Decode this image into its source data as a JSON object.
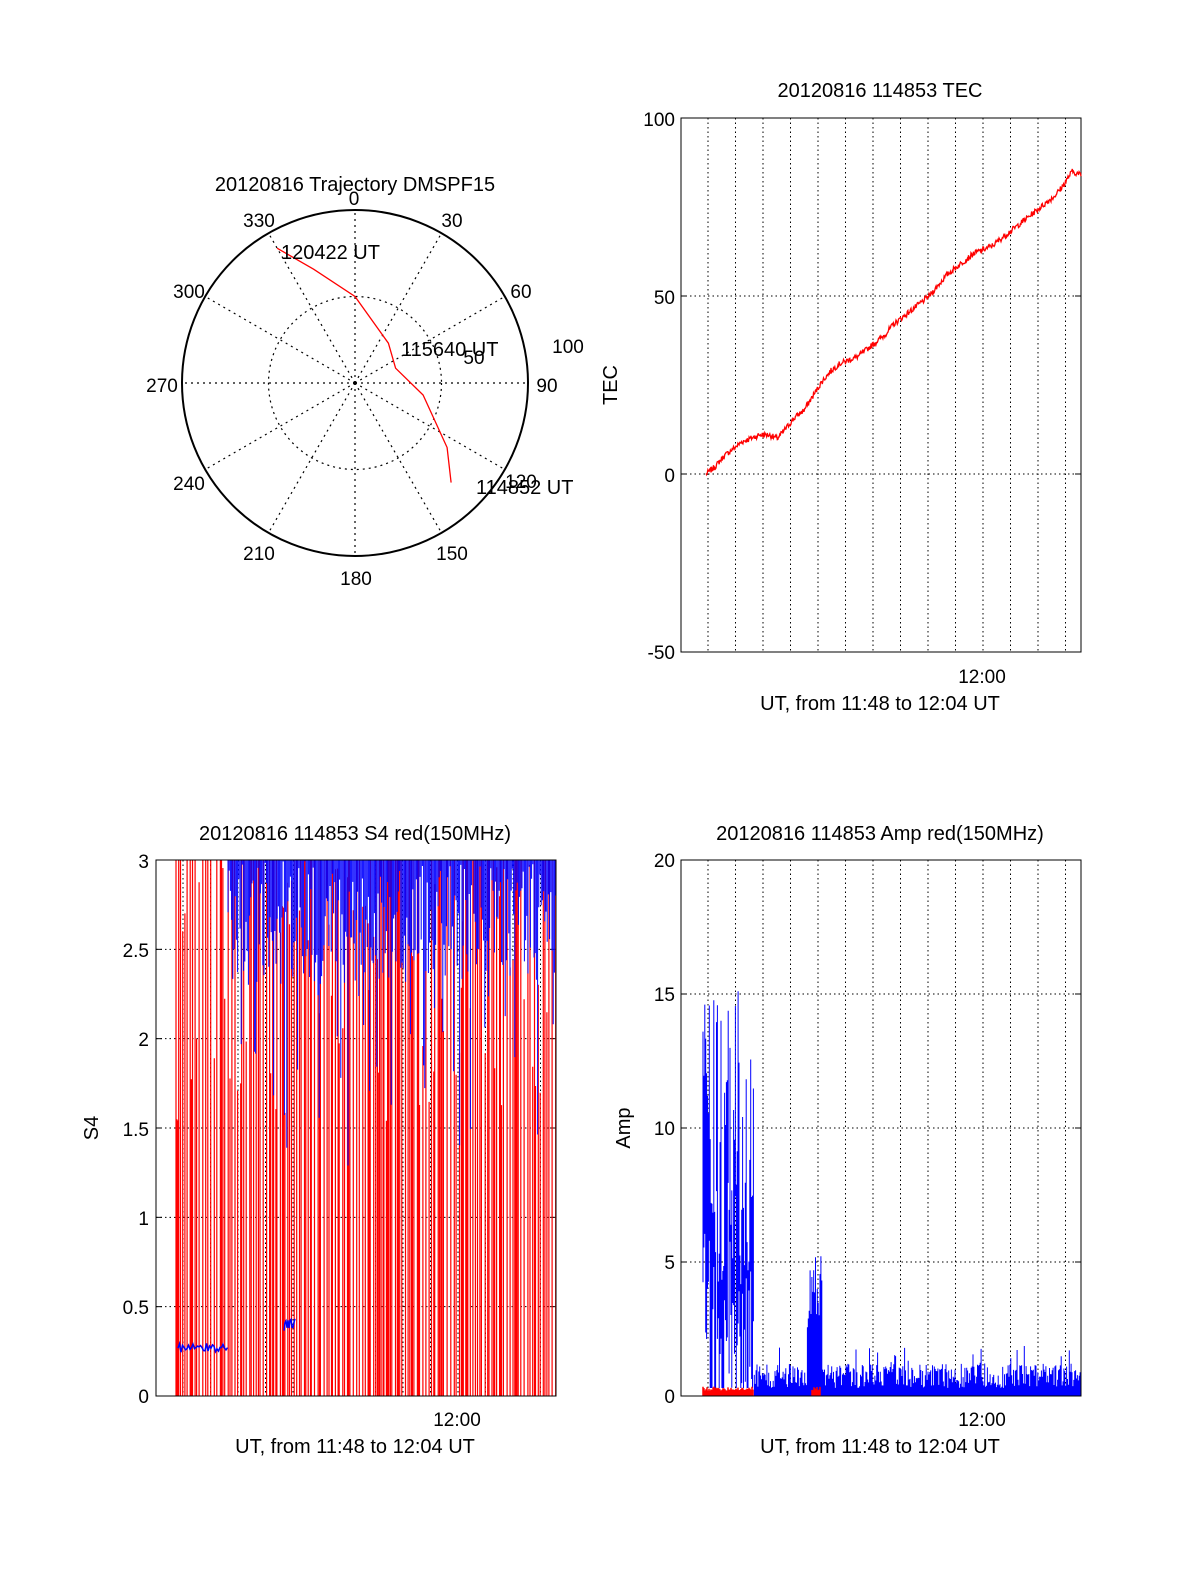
{
  "colors": {
    "red": "#ff0000",
    "blue": "#0000ff",
    "axis": "#000000",
    "grid": "#000000"
  },
  "chart_data": [
    {
      "type": "polar",
      "title": "20120816 Trajectory DMSPF15",
      "angle_labels": [
        "0",
        "30",
        "60",
        "90",
        "120",
        "150",
        "180",
        "210",
        "240",
        "270",
        "300",
        "330"
      ],
      "radial_labels": [
        "50",
        "100"
      ],
      "rlim": [
        0,
        100
      ],
      "grid": true,
      "trajectory": {
        "points": [
          [
            330,
            90
          ],
          [
            340,
            70
          ],
          [
            0,
            50
          ],
          [
            40,
            30
          ],
          [
            70,
            25
          ],
          [
            100,
            40
          ],
          [
            125,
            65
          ],
          [
            136,
            80
          ]
        ],
        "labels": [
          {
            "text": "120422 UT",
            "az": 330,
            "r": 90
          },
          {
            "text": "115640 UT",
            "az": 70,
            "r": 25
          },
          {
            "text": "114852 UT",
            "az": 136,
            "r": 80
          }
        ]
      }
    },
    {
      "type": "line",
      "title": "20120816 114853 TEC",
      "ylabel": "TEC",
      "xlabel": "UT, from 11:48 to 12:04 UT",
      "xtick_label": "12:00",
      "ylim": [
        -50,
        100
      ],
      "yticks": [
        "-50",
        "0",
        "50",
        "100"
      ],
      "series": [
        {
          "values": [
            0,
            2,
            5,
            7,
            9,
            10,
            11,
            11,
            10,
            13,
            16,
            18,
            22,
            26,
            29,
            31,
            32,
            33,
            35,
            37,
            39,
            42,
            44,
            46,
            48,
            50,
            53,
            56,
            58,
            60,
            62,
            63,
            64,
            66,
            68,
            70,
            72,
            74,
            76,
            78,
            81,
            85,
            84
          ]
        }
      ]
    },
    {
      "type": "line",
      "title": "20120816 114853 S4 red(150MHz)",
      "ylabel": "S4",
      "xlabel": "UT, from 11:48 to 12:04 UT",
      "xtick_label": "12:00",
      "ylim": [
        0,
        3
      ],
      "yticks": [
        "0",
        "0.5",
        "1",
        "1.5",
        "2",
        "2.5",
        "3"
      ]
    },
    {
      "type": "line",
      "title": "20120816 114853 Amp red(150MHz)",
      "ylabel": "Amp",
      "xlabel": "UT, from 11:48 to 12:04 UT",
      "xtick_label": "12:00",
      "ylim": [
        0,
        20
      ],
      "yticks": [
        "0",
        "5",
        "10",
        "15",
        "20"
      ]
    }
  ]
}
